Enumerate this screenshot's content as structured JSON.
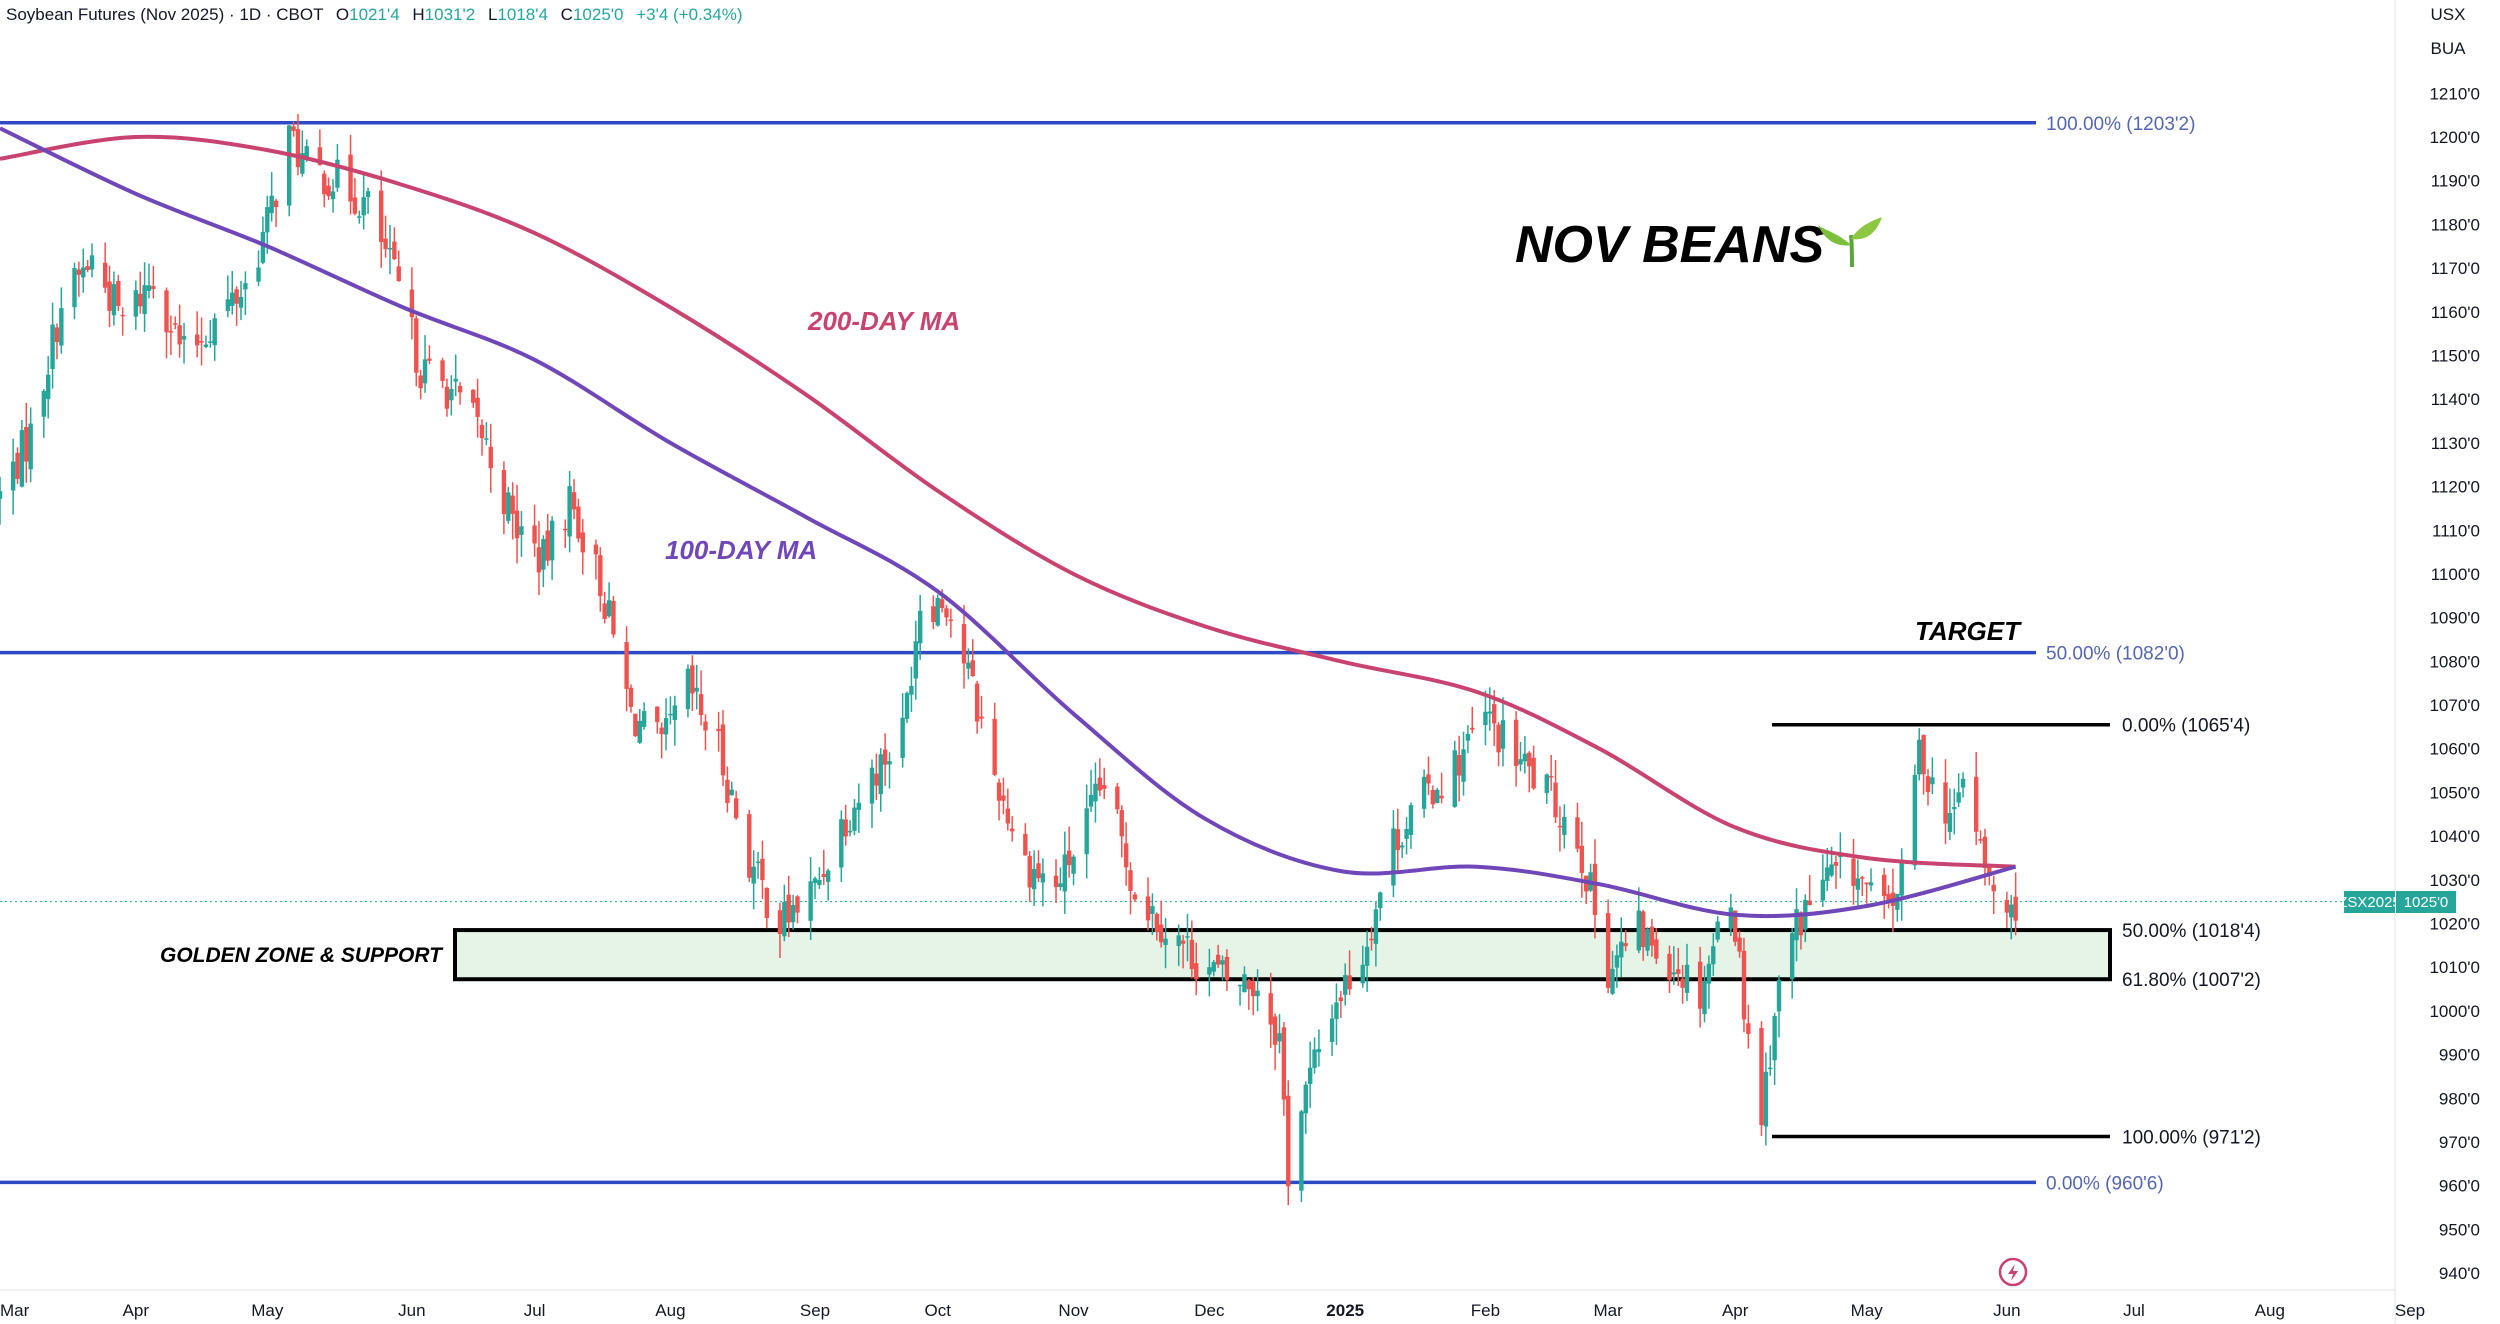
{
  "header": {
    "symbol_title": "Soybean Futures (Nov 2025) · 1D · CBOT",
    "open_label": "O",
    "open": "1021'4",
    "high_label": "H",
    "high": "1031'2",
    "low_label": "L",
    "low": "1018'4",
    "close_label": "C",
    "close": "1025'0",
    "change": "+3'4 (+0.34%)"
  },
  "axis_header": {
    "currency": "USX",
    "unit": "BUA"
  },
  "price_badge": {
    "ticker": "ZSX2025",
    "price": "1025'0"
  },
  "colors": {
    "up": "#26a69a",
    "down": "#ef5350",
    "ma200": "#c8446e",
    "ma100": "#7047b8",
    "fib": "#2f48c3",
    "fib_text": "#5566b0",
    "zone_fill": "#e6f4e8",
    "badge_bg": "#26a69a"
  },
  "annotations": {
    "title": "NOV BEANS",
    "title_icon": "seedling-icon",
    "ma200_label": "200-DAY MA",
    "ma100_label": "100-DAY MA",
    "target_label": "TARGET",
    "zone_label": "GOLDEN ZONE & SUPPORT"
  },
  "long_fib": [
    {
      "label": "100.00% (1203'2)",
      "price": 1203.25
    },
    {
      "label": "50.00% (1082'0)",
      "price": 1082.0
    },
    {
      "label": "0.00% (960'6)",
      "price": 960.75
    }
  ],
  "short_fib": [
    {
      "label": "0.00% (1065'4)",
      "price": 1065.5
    },
    {
      "label": "50.00% (1018'4)",
      "price": 1018.5
    },
    {
      "label": "61.80% (1007'2)",
      "price": 1007.25
    },
    {
      "label": "100.00% (971'2)",
      "price": 971.25
    }
  ],
  "chart_data": {
    "type": "candlestick",
    "y_axis": {
      "range": [
        935,
        1220
      ],
      "ticks": [
        "1210'0",
        "1200'0",
        "1190'0",
        "1180'0",
        "1170'0",
        "1160'0",
        "1150'0",
        "1140'0",
        "1130'0",
        "1120'0",
        "1110'0",
        "1100'0",
        "1090'0",
        "1080'0",
        "1070'0",
        "1060'0",
        "1050'0",
        "1040'0",
        "1030'0",
        "1020'0",
        "1010'0",
        "1000'0",
        "990'0",
        "980'0",
        "970'0",
        "960'0",
        "950'0",
        "940'0"
      ],
      "tick_values": [
        1210,
        1200,
        1190,
        1180,
        1170,
        1160,
        1150,
        1140,
        1130,
        1120,
        1110,
        1100,
        1090,
        1080,
        1070,
        1060,
        1050,
        1040,
        1030,
        1020,
        1010,
        1000,
        990,
        980,
        970,
        960,
        950,
        940
      ]
    },
    "x_axis": {
      "range": [
        "2024-03-01",
        "2025-09-02"
      ],
      "ticks": [
        {
          "label": "Mar",
          "date": "2024-03-01"
        },
        {
          "label": "Apr",
          "date": "2024-04-01"
        },
        {
          "label": "May",
          "date": "2024-05-01"
        },
        {
          "label": "Jun",
          "date": "2024-06-03"
        },
        {
          "label": "Jul",
          "date": "2024-07-01"
        },
        {
          "label": "Aug",
          "date": "2024-08-01"
        },
        {
          "label": "Sep",
          "date": "2024-09-03"
        },
        {
          "label": "Oct",
          "date": "2024-10-01"
        },
        {
          "label": "Nov",
          "date": "2024-11-01"
        },
        {
          "label": "Dec",
          "date": "2024-12-02"
        },
        {
          "label": "2025",
          "date": "2025-01-02",
          "bold": true
        },
        {
          "label": "Feb",
          "date": "2025-02-03"
        },
        {
          "label": "Mar",
          "date": "2025-03-03"
        },
        {
          "label": "Apr",
          "date": "2025-04-01"
        },
        {
          "label": "May",
          "date": "2025-05-01"
        },
        {
          "label": "Jun",
          "date": "2025-06-02"
        },
        {
          "label": "Jul",
          "date": "2025-07-01"
        },
        {
          "label": "Aug",
          "date": "2025-08-01"
        },
        {
          "label": "Sep",
          "date": "2025-09-02"
        }
      ]
    },
    "close_path": [
      [
        "2024-03-01",
        1118
      ],
      [
        "2024-03-08",
        1132
      ],
      [
        "2024-03-15",
        1162
      ],
      [
        "2024-03-22",
        1172
      ],
      [
        "2024-03-29",
        1158
      ],
      [
        "2024-04-05",
        1168
      ],
      [
        "2024-04-12",
        1150
      ],
      [
        "2024-04-19",
        1158
      ],
      [
        "2024-04-26",
        1166
      ],
      [
        "2024-05-01",
        1180
      ],
      [
        "2024-05-06",
        1200
      ],
      [
        "2024-05-10",
        1193
      ],
      [
        "2024-05-17",
        1190
      ],
      [
        "2024-05-24",
        1184
      ],
      [
        "2024-05-31",
        1165
      ],
      [
        "2024-06-05",
        1147
      ],
      [
        "2024-06-12",
        1142
      ],
      [
        "2024-06-19",
        1132
      ],
      [
        "2024-06-26",
        1112
      ],
      [
        "2024-07-03",
        1103
      ],
      [
        "2024-07-09",
        1117
      ],
      [
        "2024-07-16",
        1098
      ],
      [
        "2024-07-23",
        1068
      ],
      [
        "2024-07-30",
        1060
      ],
      [
        "2024-08-05",
        1074
      ],
      [
        "2024-08-12",
        1060
      ],
      [
        "2024-08-19",
        1034
      ],
      [
        "2024-08-26",
        1020
      ],
      [
        "2024-09-03",
        1028
      ],
      [
        "2024-09-09",
        1043
      ],
      [
        "2024-09-16",
        1054
      ],
      [
        "2024-09-23",
        1064
      ],
      [
        "2024-09-27",
        1094
      ],
      [
        "2024-10-03",
        1094
      ],
      [
        "2024-10-08",
        1077
      ],
      [
        "2024-10-14",
        1054
      ],
      [
        "2024-10-21",
        1034
      ],
      [
        "2024-10-28",
        1028
      ],
      [
        "2024-11-04",
        1043
      ],
      [
        "2024-11-08",
        1052
      ],
      [
        "2024-11-15",
        1028
      ],
      [
        "2024-11-22",
        1019
      ],
      [
        "2024-11-29",
        1012
      ],
      [
        "2024-12-06",
        1007
      ],
      [
        "2024-12-13",
        1006
      ],
      [
        "2024-12-18",
        994
      ],
      [
        "2024-12-20",
        963
      ],
      [
        "2024-12-23",
        978
      ],
      [
        "2024-12-30",
        1001
      ],
      [
        "2025-01-06",
        1013
      ],
      [
        "2025-01-13",
        1039
      ],
      [
        "2025-01-20",
        1049
      ],
      [
        "2025-01-27",
        1056
      ],
      [
        "2025-02-03",
        1067
      ],
      [
        "2025-02-10",
        1058
      ],
      [
        "2025-02-17",
        1050
      ],
      [
        "2025-02-24",
        1040
      ],
      [
        "2025-03-03",
        1010
      ],
      [
        "2025-03-10",
        1018
      ],
      [
        "2025-03-17",
        1012
      ],
      [
        "2025-03-24",
        1005
      ],
      [
        "2025-03-31",
        1028
      ],
      [
        "2025-04-03",
        1002
      ],
      [
        "2025-04-07",
        976
      ],
      [
        "2025-04-10",
        1000
      ],
      [
        "2025-04-14",
        1018
      ],
      [
        "2025-04-21",
        1030
      ],
      [
        "2025-04-28",
        1032
      ],
      [
        "2025-05-05",
        1022
      ],
      [
        "2025-05-09",
        1030
      ],
      [
        "2025-05-13",
        1060
      ],
      [
        "2025-05-16",
        1052
      ],
      [
        "2025-05-21",
        1043
      ],
      [
        "2025-05-23",
        1055
      ],
      [
        "2025-05-28",
        1032
      ],
      [
        "2025-06-02",
        1020
      ],
      [
        "2025-06-04",
        1025
      ]
    ],
    "series": [
      {
        "name": "200-DAY MA",
        "points": [
          [
            "2024-03-01",
            1195
          ],
          [
            "2024-04-01",
            1200
          ],
          [
            "2024-05-01",
            1197
          ],
          [
            "2024-06-01",
            1189
          ],
          [
            "2024-07-01",
            1178
          ],
          [
            "2024-08-01",
            1161
          ],
          [
            "2024-09-01",
            1141
          ],
          [
            "2024-10-01",
            1119
          ],
          [
            "2024-11-01",
            1100
          ],
          [
            "2024-12-01",
            1088
          ],
          [
            "2025-01-01",
            1080
          ],
          [
            "2025-02-01",
            1073
          ],
          [
            "2025-03-01",
            1060
          ],
          [
            "2025-04-01",
            1042
          ],
          [
            "2025-05-01",
            1035
          ],
          [
            "2025-06-04",
            1033
          ]
        ]
      },
      {
        "name": "100-DAY MA",
        "points": [
          [
            "2024-03-01",
            1202
          ],
          [
            "2024-04-01",
            1187
          ],
          [
            "2024-05-01",
            1175
          ],
          [
            "2024-06-01",
            1161
          ],
          [
            "2024-07-01",
            1149
          ],
          [
            "2024-08-01",
            1130
          ],
          [
            "2024-09-01",
            1113
          ],
          [
            "2024-10-01",
            1096
          ],
          [
            "2024-11-01",
            1068
          ],
          [
            "2024-12-01",
            1044
          ],
          [
            "2025-01-01",
            1032
          ],
          [
            "2025-02-01",
            1033
          ],
          [
            "2025-03-01",
            1029
          ],
          [
            "2025-04-01",
            1022
          ],
          [
            "2025-05-01",
            1024
          ],
          [
            "2025-06-04",
            1033
          ]
        ]
      }
    ],
    "last_price": 1025.0
  }
}
